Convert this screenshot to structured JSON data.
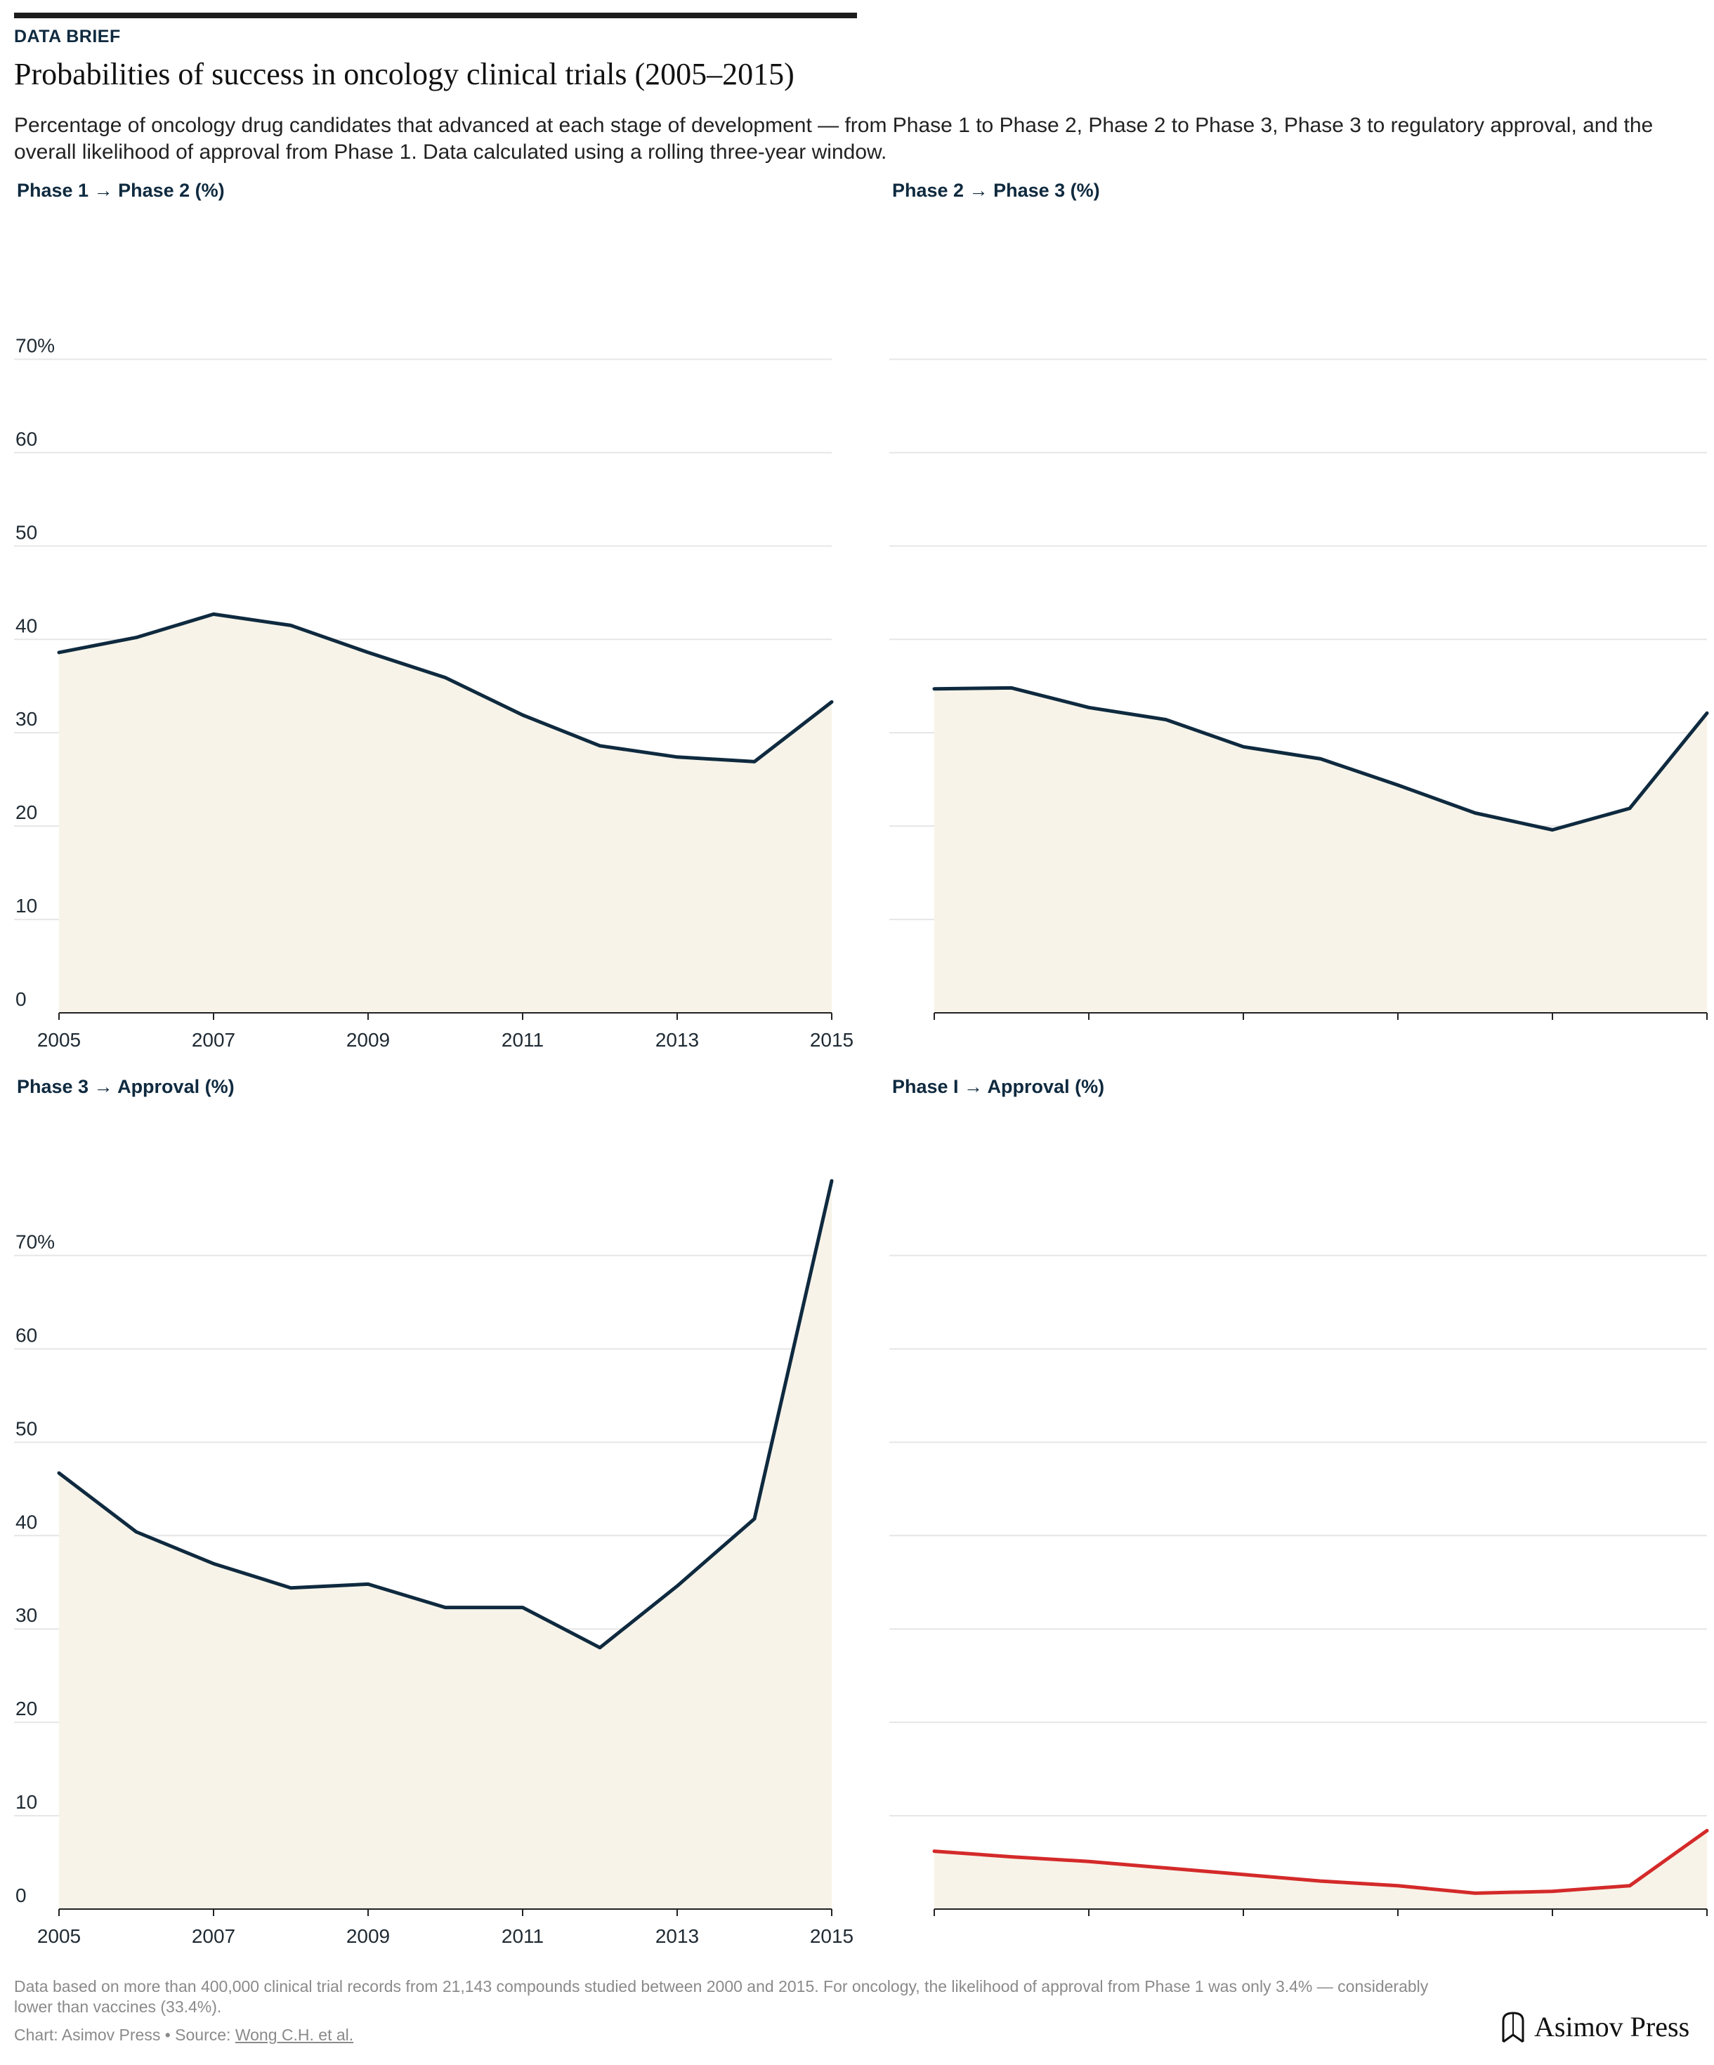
{
  "header": {
    "kicker": "DATA BRIEF",
    "title": "Probabilities of success in oncology clinical trials (2005–2015)",
    "subtitle": "Percentage of oncology drug candidates that advanced at each stage of development — from Phase 1 to Phase 2, Phase 2 to Phase 3, Phase 3 to regulatory approval, and the overall likelihood of approval from Phase 1. Data calculated using a rolling three-year window."
  },
  "colors": {
    "line": "#0f2a3f",
    "highlight": "#d42a2a",
    "area": "#f7f3e8",
    "grid": "#e6e6e6"
  },
  "chart_data": [
    {
      "type": "area",
      "title": "Phase 1 → Phase 2 (%)",
      "x": [
        2005,
        2006,
        2007,
        2008,
        2009,
        2010,
        2011,
        2012,
        2013,
        2014,
        2015
      ],
      "series": [
        {
          "values": [
            38.6,
            40.2,
            42.7,
            41.5,
            38.6,
            35.9,
            31.9,
            28.6,
            27.4,
            26.9,
            33.3
          ]
        }
      ],
      "ylim": [
        0,
        70
      ],
      "yticks": [
        "0",
        "10",
        "20",
        "30",
        "40",
        "50",
        "60",
        "70%"
      ],
      "xticks": [
        "2005",
        "2007",
        "2009",
        "2011",
        "2013",
        "2015"
      ],
      "show_y_labels": true,
      "show_x_labels": true,
      "grid": true
    },
    {
      "type": "area",
      "title": "Phase 2 → Phase 3 (%)",
      "x": [
        2005,
        2006,
        2007,
        2008,
        2009,
        2010,
        2011,
        2012,
        2013,
        2014,
        2015
      ],
      "series": [
        {
          "values": [
            34.7,
            34.8,
            32.7,
            31.4,
            28.5,
            27.2,
            24.4,
            21.4,
            19.6,
            21.9,
            32.1
          ]
        }
      ],
      "ylim": [
        0,
        70
      ],
      "yticks": [
        "0",
        "10",
        "20",
        "30",
        "40",
        "50",
        "60",
        "70%"
      ],
      "xticks": [
        "2005",
        "2007",
        "2009",
        "2011",
        "2013",
        "2015"
      ],
      "show_y_labels": false,
      "show_x_labels": false,
      "grid": true
    },
    {
      "type": "area",
      "title": "Phase 3 → Approval (%)",
      "x": [
        2005,
        2006,
        2007,
        2008,
        2009,
        2010,
        2011,
        2012,
        2013,
        2014,
        2015
      ],
      "series": [
        {
          "values": [
            46.7,
            40.4,
            37.0,
            34.4,
            34.8,
            32.3,
            32.3,
            28.0,
            34.6,
            41.8,
            78.0
          ]
        }
      ],
      "ylim": [
        0,
        70
      ],
      "yticks": [
        "0",
        "10",
        "20",
        "30",
        "40",
        "50",
        "60",
        "70%"
      ],
      "xticks": [
        "2005",
        "2007",
        "2009",
        "2011",
        "2013",
        "2015"
      ],
      "show_y_labels": true,
      "show_x_labels": true,
      "grid": true
    },
    {
      "type": "area",
      "title": "Phase I → Approval (%)",
      "x": [
        2005,
        2006,
        2007,
        2008,
        2009,
        2010,
        2011,
        2012,
        2013,
        2014,
        2015
      ],
      "series": [
        {
          "values": [
            6.2,
            5.6,
            5.1,
            4.4,
            3.7,
            3.0,
            2.5,
            1.7,
            1.9,
            2.5,
            8.4
          ]
        }
      ],
      "ylim": [
        0,
        70
      ],
      "yticks": [
        "0",
        "10",
        "20",
        "30",
        "40",
        "50",
        "60",
        "70%"
      ],
      "xticks": [
        "2005",
        "2007",
        "2009",
        "2011",
        "2013",
        "2015"
      ],
      "show_y_labels": false,
      "show_x_labels": false,
      "grid": true,
      "highlight": true
    }
  ],
  "footer": {
    "note": "Data based on more than 400,000 clinical trial records from 21,143 compounds studied between 2000 and 2015. For oncology, the likelihood of approval from Phase 1 was only 3.4% — considerably lower than vaccines (33.4%).",
    "credit_prefix": "Chart: Asimov Press • Source: ",
    "source_link": "Wong C.H. et al.",
    "brand": "Asimov Press"
  }
}
